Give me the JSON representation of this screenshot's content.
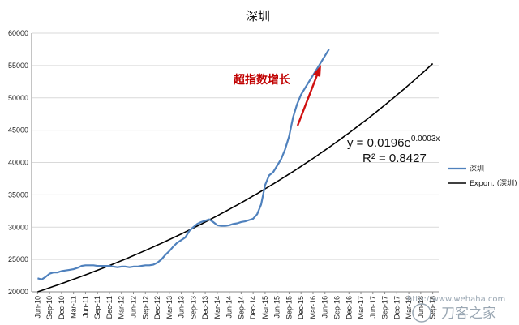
{
  "chart_data": {
    "type": "line",
    "title": "深圳",
    "xlabel": "",
    "ylabel": "",
    "ylim": [
      20000,
      60000
    ],
    "yticks": [
      20000,
      25000,
      30000,
      35000,
      40000,
      45000,
      50000,
      55000,
      60000
    ],
    "x_categories": [
      "Jun-10",
      "Sep-10",
      "Dec-10",
      "Mar-11",
      "Jun-11",
      "Sep-11",
      "Dec-11",
      "Mar-12",
      "Jun-12",
      "Sep-12",
      "Dec-12",
      "Mar-13",
      "Jun-13",
      "Sep-13",
      "Dec-13",
      "Mar-14",
      "Jun-14",
      "Sep-14",
      "Dec-14",
      "Mar-15",
      "Jun-15",
      "Sep-15",
      "Dec-15",
      "Mar-16",
      "Jun-16",
      "Sep-16",
      "Dec-16",
      "Mar-17",
      "Jun-17",
      "Sep-17",
      "Dec-17",
      "Mar-18",
      "Jun-18",
      "Sep-18"
    ],
    "grid": "horizontal",
    "legend_position": "right",
    "series": [
      {
        "name": "深圳",
        "color": "#4f81bd",
        "x": [
          "Jun-10",
          "Jul-10",
          "Aug-10",
          "Sep-10",
          "Oct-10",
          "Nov-10",
          "Dec-10",
          "Jan-11",
          "Feb-11",
          "Mar-11",
          "Apr-11",
          "May-11",
          "Jun-11",
          "Jul-11",
          "Aug-11",
          "Sep-11",
          "Oct-11",
          "Nov-11",
          "Dec-11",
          "Jan-12",
          "Feb-12",
          "Mar-12",
          "Apr-12",
          "May-12",
          "Jun-12",
          "Jul-12",
          "Aug-12",
          "Sep-12",
          "Oct-12",
          "Nov-12",
          "Dec-12",
          "Jan-13",
          "Feb-13",
          "Mar-13",
          "Apr-13",
          "May-13",
          "Jun-13",
          "Jul-13",
          "Aug-13",
          "Sep-13",
          "Oct-13",
          "Nov-13",
          "Dec-13",
          "Jan-14",
          "Feb-14",
          "Mar-14",
          "Apr-14",
          "May-14",
          "Jun-14",
          "Jul-14",
          "Aug-14",
          "Sep-14",
          "Oct-14",
          "Nov-14",
          "Dec-14",
          "Jan-15",
          "Feb-15",
          "Mar-15",
          "Apr-15",
          "May-15",
          "Jun-15",
          "Jul-15",
          "Aug-15",
          "Sep-15",
          "Oct-15",
          "Nov-15",
          "Dec-15",
          "Jan-16",
          "Feb-16",
          "Mar-16",
          "Apr-16",
          "May-16",
          "Jun-16",
          "Jul-16"
        ],
        "values": [
          22100,
          21900,
          22300,
          22800,
          23000,
          23000,
          23200,
          23300,
          23400,
          23500,
          23700,
          24000,
          24100,
          24100,
          24100,
          24000,
          24000,
          24000,
          24000,
          23900,
          23800,
          23900,
          23900,
          23800,
          23900,
          23900,
          24000,
          24100,
          24100,
          24200,
          24500,
          25000,
          25700,
          26300,
          27000,
          27600,
          28000,
          28400,
          29400,
          30000,
          30500,
          30800,
          31000,
          31200,
          30800,
          30300,
          30200,
          30200,
          30300,
          30500,
          30600,
          30800,
          30900,
          31100,
          31300,
          32000,
          33500,
          36500,
          38000,
          38500,
          39500,
          40500,
          42000,
          44000,
          47000,
          49000,
          50500,
          51500,
          52500,
          53500,
          54500,
          55500,
          56500,
          57500
        ]
      },
      {
        "name": "Expon. (深圳)",
        "color": "#000000",
        "trend": "exponential",
        "x_range": [
          "Jun-10",
          "Sep-18"
        ],
        "y_range": [
          20000,
          55300
        ]
      }
    ],
    "annotations": [
      {
        "text": "超指数增长",
        "color": "#c00000"
      },
      {
        "text": "y = 0.0196e",
        "superscript": "0.0003x"
      },
      {
        "text": "R² = 0.8427"
      }
    ]
  },
  "watermark": {
    "url": "http://www.wehaha.com",
    "brand": "刀客之家"
  }
}
